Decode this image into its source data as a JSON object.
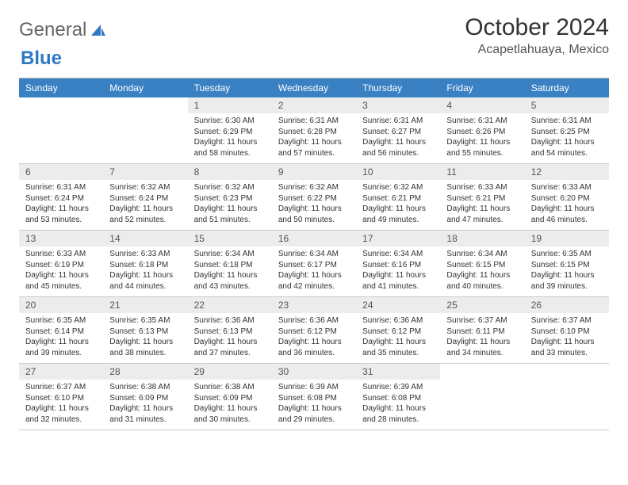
{
  "logo": {
    "text1": "General",
    "text2": "Blue"
  },
  "header": {
    "title": "October 2024",
    "location": "Acapetlahuaya, Mexico"
  },
  "colors": {
    "header_bar": "#3a81c4",
    "header_text": "#ffffff",
    "daynum_bg": "#ececec",
    "border": "#cccccc",
    "text": "#333333"
  },
  "weekdays": [
    "Sunday",
    "Monday",
    "Tuesday",
    "Wednesday",
    "Thursday",
    "Friday",
    "Saturday"
  ],
  "calendar": {
    "leading_blanks": 2,
    "days": [
      {
        "n": "1",
        "sunrise": "Sunrise: 6:30 AM",
        "sunset": "Sunset: 6:29 PM",
        "daylight": "Daylight: 11 hours and 58 minutes."
      },
      {
        "n": "2",
        "sunrise": "Sunrise: 6:31 AM",
        "sunset": "Sunset: 6:28 PM",
        "daylight": "Daylight: 11 hours and 57 minutes."
      },
      {
        "n": "3",
        "sunrise": "Sunrise: 6:31 AM",
        "sunset": "Sunset: 6:27 PM",
        "daylight": "Daylight: 11 hours and 56 minutes."
      },
      {
        "n": "4",
        "sunrise": "Sunrise: 6:31 AM",
        "sunset": "Sunset: 6:26 PM",
        "daylight": "Daylight: 11 hours and 55 minutes."
      },
      {
        "n": "5",
        "sunrise": "Sunrise: 6:31 AM",
        "sunset": "Sunset: 6:25 PM",
        "daylight": "Daylight: 11 hours and 54 minutes."
      },
      {
        "n": "6",
        "sunrise": "Sunrise: 6:31 AM",
        "sunset": "Sunset: 6:24 PM",
        "daylight": "Daylight: 11 hours and 53 minutes."
      },
      {
        "n": "7",
        "sunrise": "Sunrise: 6:32 AM",
        "sunset": "Sunset: 6:24 PM",
        "daylight": "Daylight: 11 hours and 52 minutes."
      },
      {
        "n": "8",
        "sunrise": "Sunrise: 6:32 AM",
        "sunset": "Sunset: 6:23 PM",
        "daylight": "Daylight: 11 hours and 51 minutes."
      },
      {
        "n": "9",
        "sunrise": "Sunrise: 6:32 AM",
        "sunset": "Sunset: 6:22 PM",
        "daylight": "Daylight: 11 hours and 50 minutes."
      },
      {
        "n": "10",
        "sunrise": "Sunrise: 6:32 AM",
        "sunset": "Sunset: 6:21 PM",
        "daylight": "Daylight: 11 hours and 49 minutes."
      },
      {
        "n": "11",
        "sunrise": "Sunrise: 6:33 AM",
        "sunset": "Sunset: 6:21 PM",
        "daylight": "Daylight: 11 hours and 47 minutes."
      },
      {
        "n": "12",
        "sunrise": "Sunrise: 6:33 AM",
        "sunset": "Sunset: 6:20 PM",
        "daylight": "Daylight: 11 hours and 46 minutes."
      },
      {
        "n": "13",
        "sunrise": "Sunrise: 6:33 AM",
        "sunset": "Sunset: 6:19 PM",
        "daylight": "Daylight: 11 hours and 45 minutes."
      },
      {
        "n": "14",
        "sunrise": "Sunrise: 6:33 AM",
        "sunset": "Sunset: 6:18 PM",
        "daylight": "Daylight: 11 hours and 44 minutes."
      },
      {
        "n": "15",
        "sunrise": "Sunrise: 6:34 AM",
        "sunset": "Sunset: 6:18 PM",
        "daylight": "Daylight: 11 hours and 43 minutes."
      },
      {
        "n": "16",
        "sunrise": "Sunrise: 6:34 AM",
        "sunset": "Sunset: 6:17 PM",
        "daylight": "Daylight: 11 hours and 42 minutes."
      },
      {
        "n": "17",
        "sunrise": "Sunrise: 6:34 AM",
        "sunset": "Sunset: 6:16 PM",
        "daylight": "Daylight: 11 hours and 41 minutes."
      },
      {
        "n": "18",
        "sunrise": "Sunrise: 6:34 AM",
        "sunset": "Sunset: 6:15 PM",
        "daylight": "Daylight: 11 hours and 40 minutes."
      },
      {
        "n": "19",
        "sunrise": "Sunrise: 6:35 AM",
        "sunset": "Sunset: 6:15 PM",
        "daylight": "Daylight: 11 hours and 39 minutes."
      },
      {
        "n": "20",
        "sunrise": "Sunrise: 6:35 AM",
        "sunset": "Sunset: 6:14 PM",
        "daylight": "Daylight: 11 hours and 39 minutes."
      },
      {
        "n": "21",
        "sunrise": "Sunrise: 6:35 AM",
        "sunset": "Sunset: 6:13 PM",
        "daylight": "Daylight: 11 hours and 38 minutes."
      },
      {
        "n": "22",
        "sunrise": "Sunrise: 6:36 AM",
        "sunset": "Sunset: 6:13 PM",
        "daylight": "Daylight: 11 hours and 37 minutes."
      },
      {
        "n": "23",
        "sunrise": "Sunrise: 6:36 AM",
        "sunset": "Sunset: 6:12 PM",
        "daylight": "Daylight: 11 hours and 36 minutes."
      },
      {
        "n": "24",
        "sunrise": "Sunrise: 6:36 AM",
        "sunset": "Sunset: 6:12 PM",
        "daylight": "Daylight: 11 hours and 35 minutes."
      },
      {
        "n": "25",
        "sunrise": "Sunrise: 6:37 AM",
        "sunset": "Sunset: 6:11 PM",
        "daylight": "Daylight: 11 hours and 34 minutes."
      },
      {
        "n": "26",
        "sunrise": "Sunrise: 6:37 AM",
        "sunset": "Sunset: 6:10 PM",
        "daylight": "Daylight: 11 hours and 33 minutes."
      },
      {
        "n": "27",
        "sunrise": "Sunrise: 6:37 AM",
        "sunset": "Sunset: 6:10 PM",
        "daylight": "Daylight: 11 hours and 32 minutes."
      },
      {
        "n": "28",
        "sunrise": "Sunrise: 6:38 AM",
        "sunset": "Sunset: 6:09 PM",
        "daylight": "Daylight: 11 hours and 31 minutes."
      },
      {
        "n": "29",
        "sunrise": "Sunrise: 6:38 AM",
        "sunset": "Sunset: 6:09 PM",
        "daylight": "Daylight: 11 hours and 30 minutes."
      },
      {
        "n": "30",
        "sunrise": "Sunrise: 6:39 AM",
        "sunset": "Sunset: 6:08 PM",
        "daylight": "Daylight: 11 hours and 29 minutes."
      },
      {
        "n": "31",
        "sunrise": "Sunrise: 6:39 AM",
        "sunset": "Sunset: 6:08 PM",
        "daylight": "Daylight: 11 hours and 28 minutes."
      }
    ]
  }
}
